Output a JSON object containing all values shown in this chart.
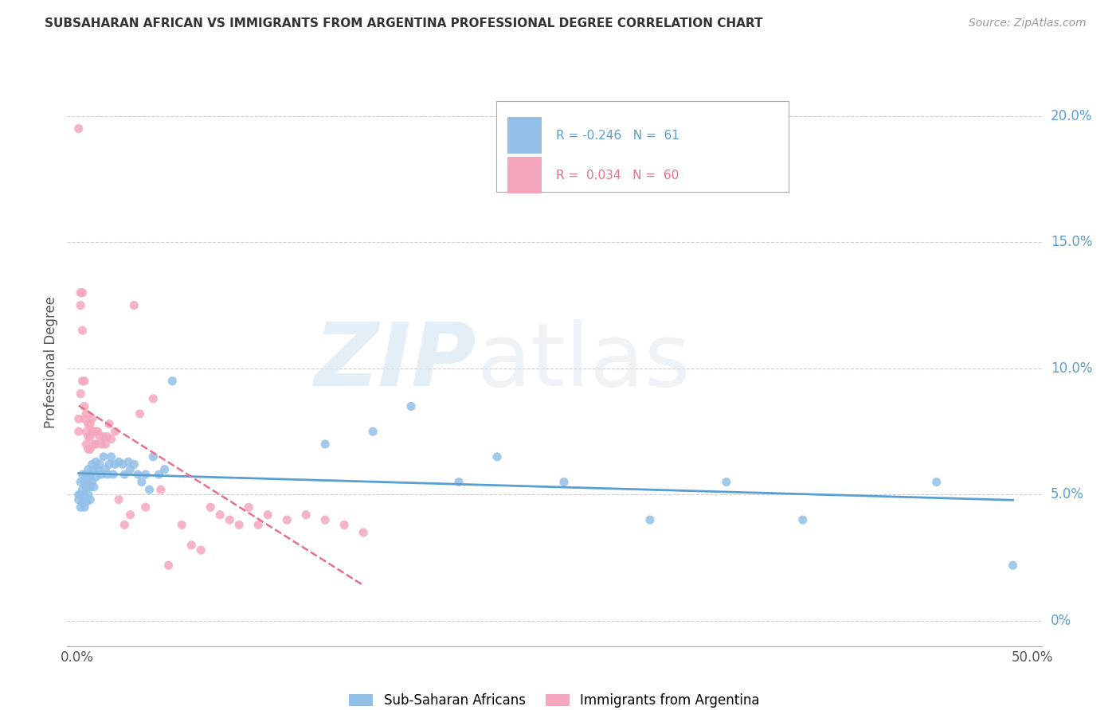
{
  "title": "SUBSAHARAN AFRICAN VS IMMIGRANTS FROM ARGENTINA PROFESSIONAL DEGREE CORRELATION CHART",
  "source": "Source: ZipAtlas.com",
  "ylabel": "Professional Degree",
  "right_yticks": [
    "0%",
    "5.0%",
    "10.0%",
    "15.0%",
    "20.0%"
  ],
  "right_ytick_vals": [
    0.0,
    0.05,
    0.1,
    0.15,
    0.2
  ],
  "xlim": [
    -0.005,
    0.505
  ],
  "ylim": [
    -0.01,
    0.215
  ],
  "legend_blue_label": "Sub-Saharan Africans",
  "legend_pink_label": "Immigrants from Argentina",
  "R_blue": -0.246,
  "N_blue": 61,
  "R_pink": 0.034,
  "N_pink": 60,
  "blue_color": "#92c0e8",
  "pink_color": "#f5a8bc",
  "blue_line_color": "#5a9fd4",
  "pink_line_color": "#e8708a",
  "pink_line_dash": [
    8,
    5
  ],
  "background_color": "#ffffff",
  "blue_scatter_x": [
    0.001,
    0.001,
    0.002,
    0.002,
    0.002,
    0.003,
    0.003,
    0.003,
    0.004,
    0.004,
    0.004,
    0.005,
    0.005,
    0.005,
    0.006,
    0.006,
    0.006,
    0.007,
    0.007,
    0.007,
    0.008,
    0.008,
    0.009,
    0.009,
    0.01,
    0.01,
    0.011,
    0.012,
    0.013,
    0.014,
    0.015,
    0.016,
    0.017,
    0.018,
    0.019,
    0.02,
    0.022,
    0.024,
    0.025,
    0.027,
    0.028,
    0.03,
    0.032,
    0.034,
    0.036,
    0.038,
    0.04,
    0.043,
    0.046,
    0.05,
    0.13,
    0.155,
    0.175,
    0.2,
    0.22,
    0.255,
    0.3,
    0.34,
    0.38,
    0.45,
    0.49
  ],
  "blue_scatter_y": [
    0.05,
    0.048,
    0.055,
    0.05,
    0.045,
    0.058,
    0.052,
    0.047,
    0.055,
    0.05,
    0.045,
    0.058,
    0.053,
    0.047,
    0.06,
    0.055,
    0.05,
    0.058,
    0.053,
    0.048,
    0.062,
    0.055,
    0.06,
    0.053,
    0.063,
    0.057,
    0.06,
    0.062,
    0.058,
    0.065,
    0.06,
    0.058,
    0.062,
    0.065,
    0.058,
    0.062,
    0.063,
    0.062,
    0.058,
    0.063,
    0.06,
    0.062,
    0.058,
    0.055,
    0.058,
    0.052,
    0.065,
    0.058,
    0.06,
    0.095,
    0.07,
    0.075,
    0.085,
    0.055,
    0.065,
    0.055,
    0.04,
    0.055,
    0.04,
    0.055,
    0.022
  ],
  "pink_scatter_x": [
    0.001,
    0.001,
    0.001,
    0.002,
    0.002,
    0.002,
    0.003,
    0.003,
    0.003,
    0.004,
    0.004,
    0.004,
    0.005,
    0.005,
    0.005,
    0.006,
    0.006,
    0.006,
    0.007,
    0.007,
    0.007,
    0.008,
    0.008,
    0.009,
    0.009,
    0.01,
    0.01,
    0.011,
    0.012,
    0.013,
    0.014,
    0.015,
    0.016,
    0.017,
    0.018,
    0.02,
    0.022,
    0.025,
    0.028,
    0.03,
    0.033,
    0.036,
    0.04,
    0.044,
    0.048,
    0.055,
    0.06,
    0.065,
    0.07,
    0.075,
    0.08,
    0.085,
    0.09,
    0.095,
    0.1,
    0.11,
    0.12,
    0.13,
    0.14,
    0.15
  ],
  "pink_scatter_y": [
    0.195,
    0.08,
    0.075,
    0.13,
    0.125,
    0.09,
    0.13,
    0.115,
    0.095,
    0.095,
    0.085,
    0.08,
    0.082,
    0.075,
    0.07,
    0.078,
    0.073,
    0.068,
    0.078,
    0.073,
    0.068,
    0.08,
    0.075,
    0.075,
    0.07,
    0.075,
    0.07,
    0.075,
    0.073,
    0.07,
    0.073,
    0.07,
    0.073,
    0.078,
    0.072,
    0.075,
    0.048,
    0.038,
    0.042,
    0.125,
    0.082,
    0.045,
    0.088,
    0.052,
    0.022,
    0.038,
    0.03,
    0.028,
    0.045,
    0.042,
    0.04,
    0.038,
    0.045,
    0.038,
    0.042,
    0.04,
    0.042,
    0.04,
    0.038,
    0.035
  ]
}
